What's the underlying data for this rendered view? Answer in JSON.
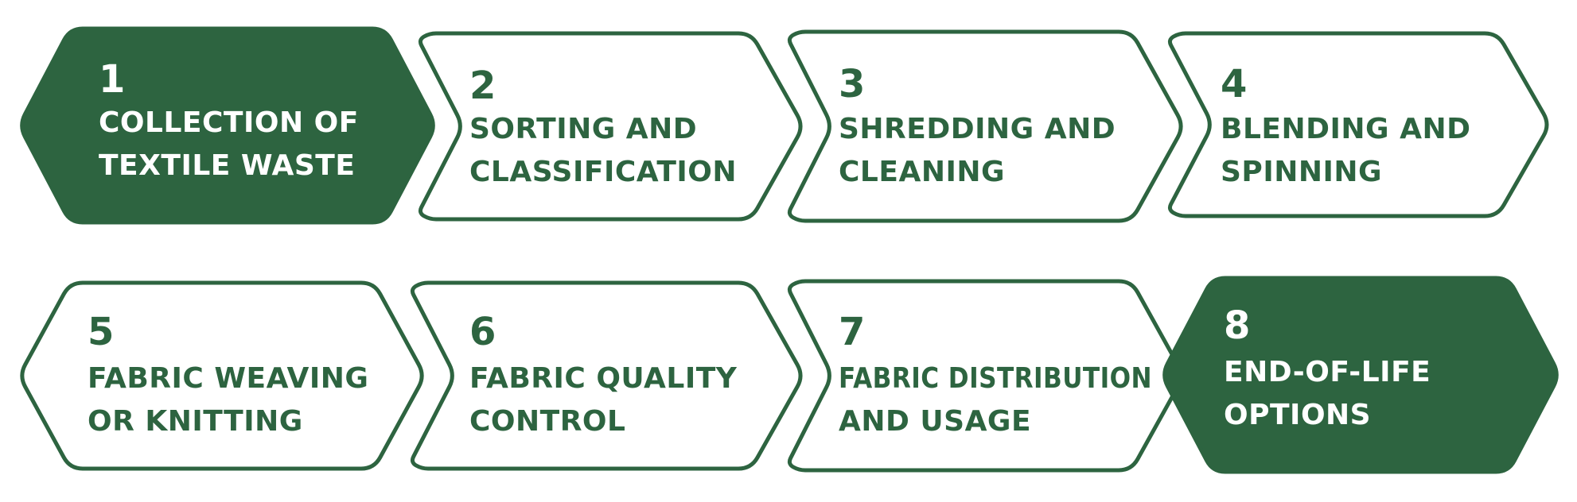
{
  "colors": {
    "primary": "#2d6440",
    "background": "#ffffff",
    "filled_text": "#ffffff",
    "outline_text": "#2d6440"
  },
  "steps": [
    {
      "number": "1",
      "lines": [
        "COLLECTION OF",
        "TEXTILE WASTE"
      ],
      "style": "filled"
    },
    {
      "number": "2",
      "lines": [
        "SORTING AND",
        "CLASSIFICATION"
      ],
      "style": "outline"
    },
    {
      "number": "3",
      "lines": [
        "SHREDDING AND",
        "CLEANING"
      ],
      "style": "outline"
    },
    {
      "number": "4",
      "lines": [
        "BLENDING AND",
        "SPINNING"
      ],
      "style": "outline"
    },
    {
      "number": "5",
      "lines": [
        "FABRIC WEAVING",
        "OR KNITTING"
      ],
      "style": "outline"
    },
    {
      "number": "6",
      "lines": [
        "FABRIC QUALITY",
        "CONTROL"
      ],
      "style": "outline"
    },
    {
      "number": "7",
      "lines": [
        "FABRIC DISTRIBUTION",
        "AND USAGE"
      ],
      "style": "outline"
    },
    {
      "number": "8",
      "lines": [
        "END-OF-LIFE",
        "OPTIONS"
      ],
      "style": "filled"
    }
  ]
}
